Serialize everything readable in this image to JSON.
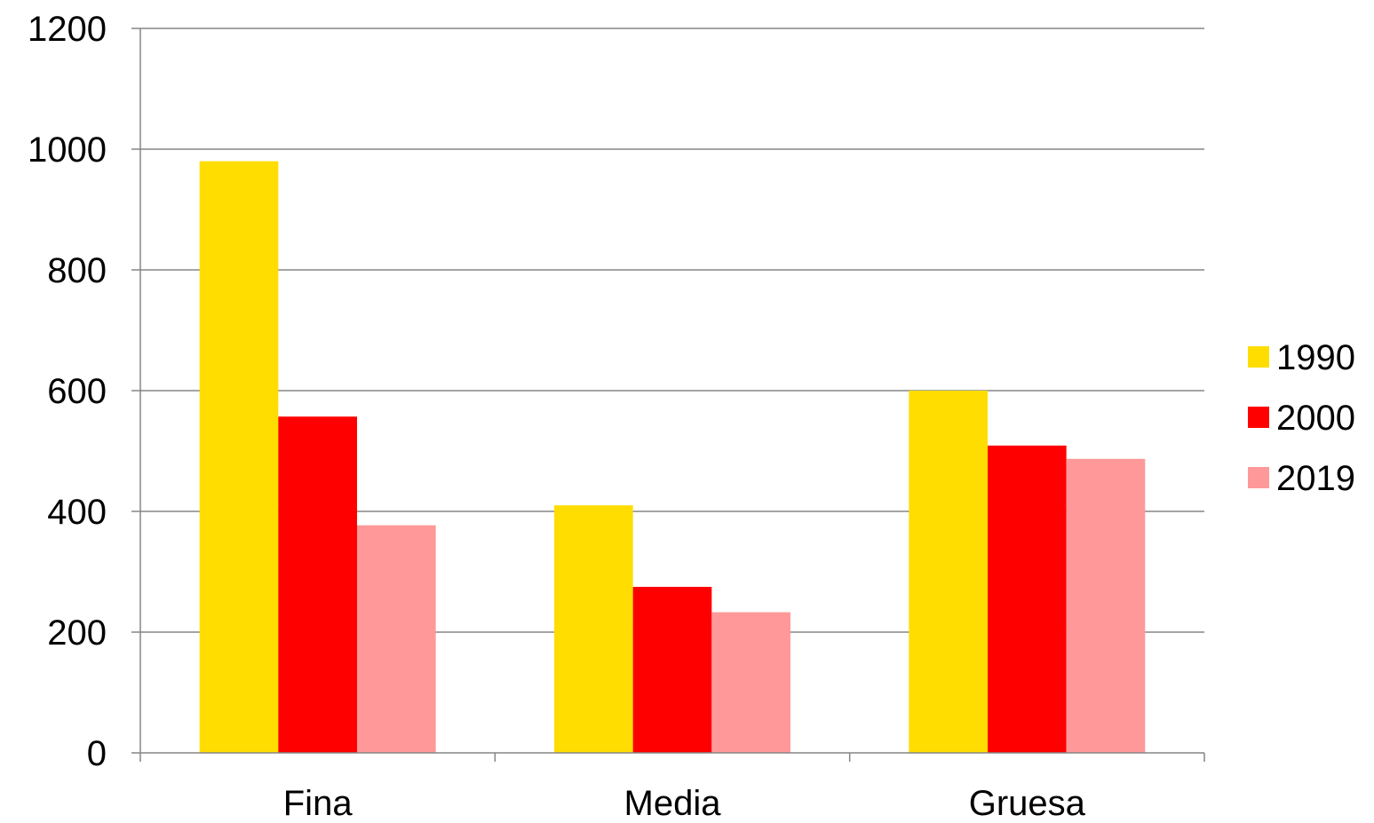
{
  "chart_data": {
    "type": "bar",
    "title": "",
    "xlabel": "",
    "ylabel": "",
    "categories": [
      "Fina",
      "Media",
      "Gruesa"
    ],
    "series": [
      {
        "name": "1990",
        "color": "#FFDD00",
        "values": [
          980,
          410,
          600
        ]
      },
      {
        "name": "2000",
        "color": "#FF0000",
        "values": [
          557,
          275,
          509
        ]
      },
      {
        "name": "2019",
        "color": "#FF9999",
        "values": [
          377,
          233,
          487
        ]
      }
    ],
    "ylim": [
      0,
      1200
    ],
    "yticks": [
      "0",
      "200",
      "400",
      "600",
      "800",
      "1000",
      "1200"
    ],
    "grid": true,
    "legend_position": "right"
  }
}
